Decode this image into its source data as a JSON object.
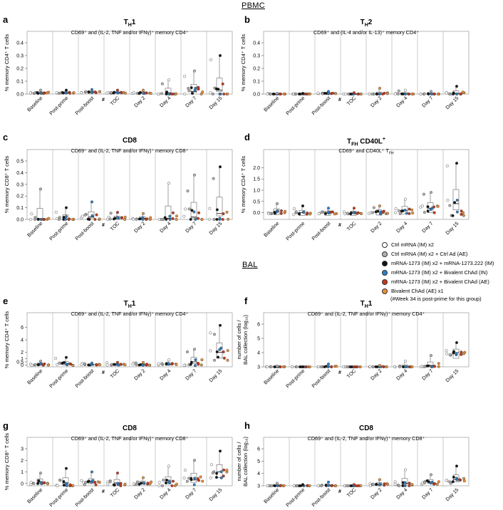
{
  "sections": {
    "pbmc": "PBMC",
    "bal": "BAL"
  },
  "groups": [
    {
      "name": "Ctrl mRNA (IM) x2",
      "color": "#ffffff"
    },
    {
      "name": "Ctrl mRNA (IM) x2 + Ctrl Ad (AE)",
      "color": "#b0b0b0"
    },
    {
      "name": "mRNA-1273 (IM) x2 + mRNA-1273.222 (IM)",
      "color": "#111111"
    },
    {
      "name": "mRNA-1273 (IM) x2 + Bivalent ChAd (IN)",
      "color": "#2f7fc0"
    },
    {
      "name": "mRNA-1273 (IM) x2 + Bivalent ChAd (AE)",
      "color": "#c8381d"
    },
    {
      "name": "Bivalent ChAd (AE) x1",
      "color": "#e8903a"
    }
  ],
  "legend_note": "(#Week 34 is post-prime for this group)",
  "timepoints": [
    "Baseline",
    "Post-prime",
    "Post-boost",
    "TOC",
    "Day 2",
    "Day 4",
    "Day 7",
    "Day 15"
  ],
  "hash_mark": "#",
  "chart_data": [
    {
      "id": "a",
      "type": "box",
      "title_main": "T",
      "title_sub": "H",
      "title_rest": "1",
      "title_sup": "",
      "subtitle": "CD69⁺ and (IL-2, TNF and/or IFNγ)⁺ memory CD4⁺",
      "ylabel": "% memory CD4⁺ T cells",
      "ylim": [
        0,
        0.4
      ],
      "ticks": [
        "0.0",
        "0.1",
        "0.2",
        "0.3",
        "0.4"
      ],
      "medians": [
        0.01,
        0.01,
        0.015,
        0.01,
        0.01,
        0.01,
        0.02,
        0.03
      ],
      "maxima": [
        0.03,
        0.03,
        0.035,
        0.03,
        0.03,
        0.11,
        0.18,
        0.3
      ]
    },
    {
      "id": "b",
      "type": "box",
      "title_main": "T",
      "title_sub": "H",
      "title_rest": "2",
      "title_sup": "",
      "subtitle": "CD69⁺ and (IL-4 and/or IL-13)⁺ memory CD4⁺",
      "ylabel": "% memory CD4⁺ T cells",
      "ylim": [
        0,
        0.4
      ],
      "ticks": [
        "0.0",
        "0.1",
        "0.2",
        "0.3",
        "0.4"
      ],
      "medians": [
        0.0,
        0.0,
        0.005,
        0.0,
        0.0,
        0.0,
        0.0,
        0.005
      ],
      "maxima": [
        0.005,
        0.005,
        0.02,
        0.01,
        0.045,
        0.03,
        0.02,
        0.06
      ]
    },
    {
      "id": "c",
      "type": "box",
      "title_main": "CD8",
      "title_sub": "",
      "title_rest": "",
      "title_sup": "",
      "subtitle": "CD69⁺ and (IL-2, TNF and/or IFNγ)⁺ memory CD8⁺",
      "ylabel": "% memory CD8⁺ T cells",
      "ylim": [
        0,
        0.5
      ],
      "ticks": [
        "0.0",
        "0.1",
        "0.2",
        "0.3",
        "0.4",
        "0.5"
      ],
      "medians": [
        0.005,
        0.005,
        0.02,
        0.01,
        0.01,
        0.01,
        0.02,
        0.05
      ],
      "maxima": [
        0.26,
        0.1,
        0.15,
        0.06,
        0.05,
        0.31,
        0.38,
        0.45
      ]
    },
    {
      "id": "d",
      "type": "box",
      "title_main": "T",
      "title_sub": "FH",
      "title_rest": " CD40L",
      "title_sup": "+",
      "subtitle": "CD69⁺ and CD40L⁺ T",
      "subtitle_sub": "FH",
      "ylabel": "% memory CD4⁺ T cells",
      "ylim": [
        -0.3,
        2.3
      ],
      "ticks": [
        "0.0",
        "0.5",
        "1.0",
        "1.5",
        "2.0"
      ],
      "tick_values": [
        0,
        0.5,
        1.0,
        1.5,
        2.0
      ],
      "medians": [
        0.05,
        0.0,
        0.0,
        0.0,
        0.02,
        0.1,
        0.2,
        0.4
      ],
      "maxima": [
        0.4,
        0.3,
        0.2,
        0.2,
        0.3,
        0.6,
        0.9,
        2.2
      ]
    },
    {
      "id": "e",
      "type": "box",
      "title_main": "T",
      "title_sub": "H",
      "title_rest": "1",
      "title_sup": "",
      "subtitle": "CD69⁺ and (IL-2, TNF and/or IFNγ)⁺ memory CD4⁺",
      "ylabel": "% memory CD4⁺ T cells",
      "ylim": [
        -0.3,
        6.5
      ],
      "ticks": [
        "0",
        "0.5",
        "1",
        "2",
        "4",
        "6"
      ],
      "tick_values": [
        0,
        0.5,
        1,
        2,
        4,
        6
      ],
      "medians": [
        0.1,
        0.2,
        0.05,
        0.05,
        0.05,
        0.1,
        0.5,
        2.0
      ],
      "maxima": [
        0.6,
        1.2,
        0.3,
        0.4,
        0.4,
        0.8,
        2.5,
        6.3
      ]
    },
    {
      "id": "f",
      "type": "box",
      "title_main": "T",
      "title_sub": "H",
      "title_rest": "1",
      "title_sup": "",
      "subtitle": "CD69⁺ and (IL-2, TNF and/or IFNγ)⁺ memory CD4⁺",
      "ylabel": "number of cells / BAL collection (log₁₀)",
      "ylim": [
        3,
        6
      ],
      "ticks": [
        "3",
        "4",
        "5",
        "6"
      ],
      "medians": [
        3.0,
        3.0,
        3.0,
        3.0,
        3.0,
        3.0,
        3.1,
        4.0
      ],
      "maxima": [
        3.05,
        3.0,
        3.2,
        3.0,
        3.1,
        3.4,
        3.8,
        4.7
      ]
    },
    {
      "id": "g",
      "type": "box",
      "title_main": "CD8",
      "title_sub": "",
      "title_rest": "",
      "title_sup": "",
      "subtitle": "CD69⁺ and (IL-2, TNF and/or IFNγ)⁺ memory CD8⁺",
      "ylabel": "% memory CD8⁺ T cells",
      "ylim": [
        -0.2,
        3
      ],
      "ticks": [
        "0",
        "1",
        "2",
        "3"
      ],
      "medians": [
        0.1,
        0.05,
        0.1,
        0.05,
        0.05,
        0.1,
        0.3,
        1.0
      ],
      "maxima": [
        0.9,
        1.3,
        1.0,
        0.9,
        0.5,
        1.5,
        2.0,
        2.8
      ]
    },
    {
      "id": "h",
      "type": "box",
      "title_main": "CD8",
      "title_sub": "",
      "title_rest": "",
      "title_sup": "",
      "subtitle": "CD69⁺ and (IL-2, TNF and/or IFNγ)⁺ memory CD8⁺",
      "ylabel": "number of cells / BAL collection (log₁₀)",
      "ylim": [
        3,
        6
      ],
      "ticks": [
        "3",
        "4",
        "5",
        "6"
      ],
      "medians": [
        3.0,
        3.0,
        3.0,
        3.0,
        3.1,
        3.2,
        3.3,
        3.5
      ],
      "maxima": [
        3.2,
        3.1,
        3.3,
        3.1,
        3.5,
        4.3,
        3.9,
        4.6
      ]
    }
  ]
}
